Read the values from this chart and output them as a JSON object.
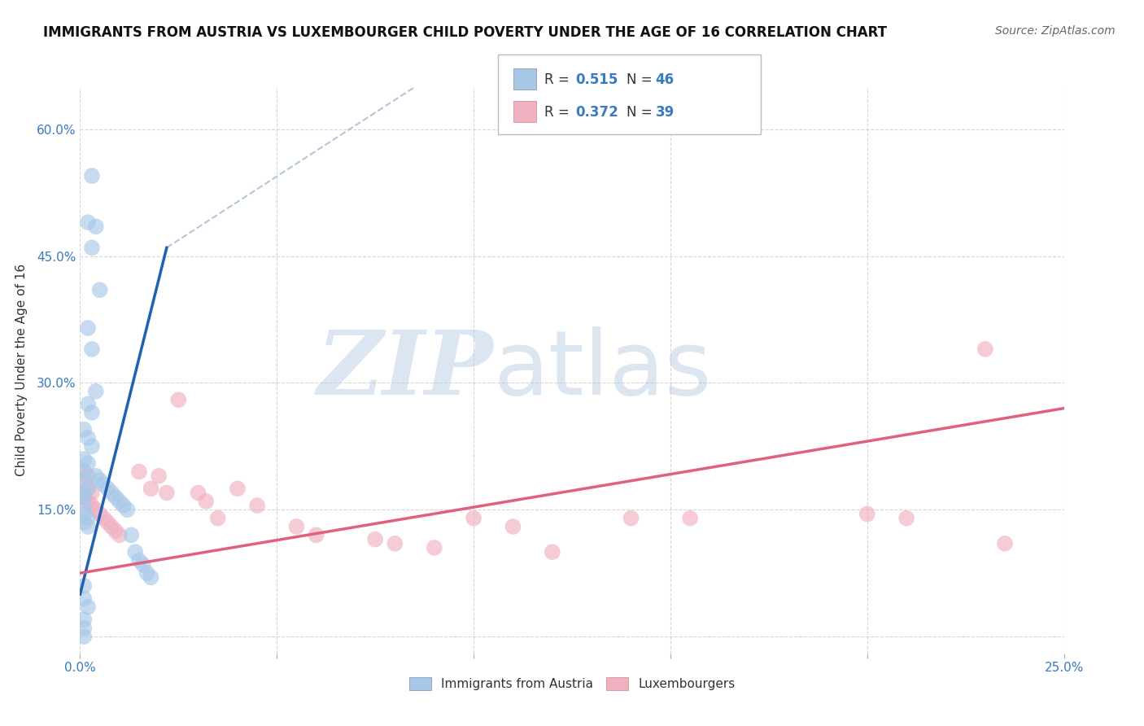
{
  "title": "IMMIGRANTS FROM AUSTRIA VS LUXEMBOURGER CHILD POVERTY UNDER THE AGE OF 16 CORRELATION CHART",
  "source": "Source: ZipAtlas.com",
  "ylabel": "Child Poverty Under the Age of 16",
  "xlim": [
    0.0,
    0.25
  ],
  "ylim": [
    -0.02,
    0.65
  ],
  "xticks": [
    0.0,
    0.05,
    0.1,
    0.15,
    0.2,
    0.25
  ],
  "yticks": [
    0.0,
    0.15,
    0.3,
    0.45,
    0.6
  ],
  "xticklabels": [
    "0.0%",
    "",
    "",
    "",
    "",
    "25.0%"
  ],
  "yticklabels": [
    "",
    "15.0%",
    "30.0%",
    "45.0%",
    "60.0%"
  ],
  "blue_color": "#a8c8e8",
  "pink_color": "#f0b0c0",
  "blue_line_color": "#2060b0",
  "pink_line_color": "#e06080",
  "dashed_color": "#a0b8d0",
  "grid_color": "#cccccc",
  "watermark_zip_color": "#c0d0e8",
  "watermark_atlas_color": "#b0c8e0",
  "legend_R1": "0.515",
  "legend_N1": "46",
  "legend_R2": "0.372",
  "legend_N2": "39",
  "legend_label1": "Immigrants from Austria",
  "legend_label2": "Luxembourgers",
  "blue_trendline_x": [
    0.0,
    0.022
  ],
  "blue_trendline_y": [
    0.05,
    0.46
  ],
  "dashed_line_x": [
    0.022,
    0.085
  ],
  "dashed_line_y": [
    0.46,
    0.65
  ],
  "pink_trendline_x": [
    0.0,
    0.25
  ],
  "pink_trendline_y": [
    0.075,
    0.27
  ],
  "blue_scatter_x": [
    0.003,
    0.002,
    0.004,
    0.003,
    0.005,
    0.002,
    0.003,
    0.004,
    0.002,
    0.003,
    0.001,
    0.002,
    0.003,
    0.001,
    0.002,
    0.001,
    0.001,
    0.002,
    0.001,
    0.001,
    0.001,
    0.001,
    0.002,
    0.001,
    0.002,
    0.004,
    0.005,
    0.006,
    0.007,
    0.008,
    0.009,
    0.01,
    0.011,
    0.012,
    0.013,
    0.014,
    0.015,
    0.016,
    0.017,
    0.018,
    0.001,
    0.001,
    0.002,
    0.001,
    0.001,
    0.001
  ],
  "blue_scatter_y": [
    0.545,
    0.49,
    0.485,
    0.46,
    0.41,
    0.365,
    0.34,
    0.29,
    0.275,
    0.265,
    0.245,
    0.235,
    0.225,
    0.21,
    0.205,
    0.195,
    0.185,
    0.175,
    0.17,
    0.165,
    0.155,
    0.145,
    0.14,
    0.135,
    0.13,
    0.19,
    0.185,
    0.18,
    0.175,
    0.17,
    0.165,
    0.16,
    0.155,
    0.15,
    0.12,
    0.1,
    0.09,
    0.085,
    0.075,
    0.07,
    0.06,
    0.045,
    0.035,
    0.02,
    0.01,
    0.0
  ],
  "pink_scatter_x": [
    0.001,
    0.002,
    0.001,
    0.002,
    0.003,
    0.001,
    0.002,
    0.003,
    0.004,
    0.005,
    0.006,
    0.007,
    0.008,
    0.009,
    0.01,
    0.015,
    0.018,
    0.02,
    0.022,
    0.025,
    0.03,
    0.032,
    0.035,
    0.04,
    0.045,
    0.055,
    0.06,
    0.075,
    0.08,
    0.09,
    0.1,
    0.11,
    0.12,
    0.14,
    0.155,
    0.2,
    0.21,
    0.23,
    0.235
  ],
  "pink_scatter_y": [
    0.195,
    0.19,
    0.185,
    0.175,
    0.17,
    0.165,
    0.16,
    0.155,
    0.15,
    0.145,
    0.14,
    0.135,
    0.13,
    0.125,
    0.12,
    0.195,
    0.175,
    0.19,
    0.17,
    0.28,
    0.17,
    0.16,
    0.14,
    0.175,
    0.155,
    0.13,
    0.12,
    0.115,
    0.11,
    0.105,
    0.14,
    0.13,
    0.1,
    0.14,
    0.14,
    0.145,
    0.14,
    0.34,
    0.11
  ]
}
